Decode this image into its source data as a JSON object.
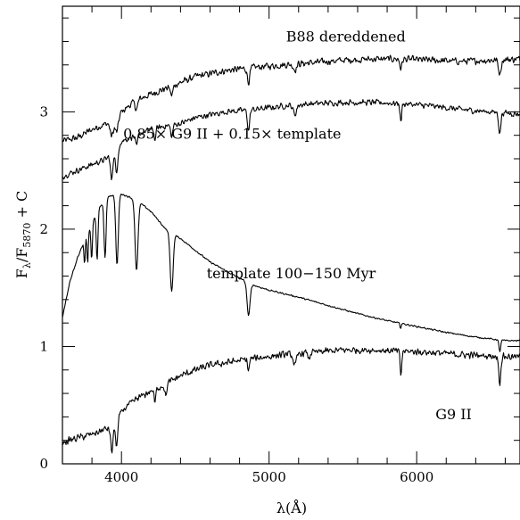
{
  "chart_data": {
    "type": "line",
    "xlabel": "λ(Å)",
    "ylabel_main": "F",
    "ylabel_sub1": "λ",
    "ylabel_mid": "/F",
    "ylabel_sub2": "5870",
    "ylabel_tail": " + C",
    "xlim": [
      3600,
      6700
    ],
    "ylim": [
      0,
      3.9
    ],
    "xticks": [
      4000,
      5000,
      6000
    ],
    "xtick_labels": [
      "4000",
      "5000",
      "6000"
    ],
    "yticks": [
      0,
      1,
      2,
      3
    ],
    "ytick_labels": [
      "0",
      "1",
      "2",
      "3"
    ],
    "grid": false,
    "series": [
      {
        "name": "B88 dereddened",
        "x": [
          3600,
          3700,
          3800,
          3900,
          3950,
          4000,
          4100,
          4200,
          4300,
          4400,
          4500,
          4700,
          4900,
          5100,
          5300,
          5500,
          5700,
          5900,
          6100,
          6300,
          6500,
          6700
        ],
        "y": [
          2.75,
          2.78,
          2.85,
          2.9,
          2.92,
          3.0,
          3.1,
          3.15,
          3.2,
          3.25,
          3.3,
          3.35,
          3.38,
          3.4,
          3.42,
          3.44,
          3.45,
          3.45,
          3.44,
          3.43,
          3.44,
          3.45
        ],
        "noise": 0.035,
        "absorption": [
          [
            3934,
            0.12,
            15
          ],
          [
            3968,
            0.12,
            15
          ],
          [
            4102,
            0.08,
            12
          ],
          [
            4340,
            0.08,
            12
          ],
          [
            4861,
            0.12,
            12
          ],
          [
            5175,
            0.05,
            15
          ],
          [
            5893,
            0.08,
            10
          ],
          [
            6563,
            0.12,
            12
          ]
        ]
      },
      {
        "name": "0.85× G9 II + 0.15× template",
        "x": [
          3600,
          3700,
          3800,
          3900,
          3950,
          4000,
          4100,
          4200,
          4300,
          4400,
          4500,
          4700,
          4900,
          5100,
          5300,
          5500,
          5700,
          5900,
          6100,
          6300,
          6500,
          6700
        ],
        "y": [
          2.45,
          2.5,
          2.55,
          2.6,
          2.7,
          2.75,
          2.8,
          2.85,
          2.88,
          2.9,
          2.95,
          3.0,
          3.02,
          3.05,
          3.07,
          3.08,
          3.08,
          3.07,
          3.05,
          3.02,
          3.0,
          2.98
        ],
        "noise": 0.03,
        "absorption": [
          [
            3934,
            0.25,
            12
          ],
          [
            3968,
            0.25,
            12
          ],
          [
            4102,
            0.1,
            10
          ],
          [
            4227,
            0.1,
            8
          ],
          [
            4340,
            0.1,
            10
          ],
          [
            4861,
            0.18,
            10
          ],
          [
            5175,
            0.08,
            15
          ],
          [
            5893,
            0.15,
            8
          ],
          [
            6563,
            0.18,
            10
          ]
        ]
      },
      {
        "name": "template 100−150 Myr",
        "x": [
          3600,
          3650,
          3700,
          3750,
          3800,
          3850,
          3900,
          4000,
          4100,
          4200,
          4300,
          4400,
          4500,
          4600,
          4700,
          4800,
          4900,
          5000,
          5200,
          5400,
          5600,
          5800,
          6000,
          6200,
          6400,
          6600,
          6700
        ],
        "y": [
          1.25,
          1.55,
          1.75,
          1.9,
          2.05,
          2.18,
          2.28,
          2.3,
          2.25,
          2.15,
          2.0,
          1.92,
          1.82,
          1.72,
          1.65,
          1.58,
          1.52,
          1.48,
          1.42,
          1.35,
          1.28,
          1.22,
          1.17,
          1.12,
          1.08,
          1.05,
          1.05
        ],
        "noise": 0.008,
        "absorption": [
          [
            3750,
            0.2,
            6
          ],
          [
            3771,
            0.25,
            6
          ],
          [
            3798,
            0.3,
            7
          ],
          [
            3835,
            0.4,
            8
          ],
          [
            3889,
            0.5,
            10
          ],
          [
            3970,
            0.6,
            12
          ],
          [
            4102,
            0.6,
            14
          ],
          [
            4340,
            0.5,
            14
          ],
          [
            4861,
            0.28,
            14
          ],
          [
            5890,
            0.04,
            6
          ],
          [
            6563,
            0.1,
            8
          ]
        ]
      },
      {
        "name": "G9 II",
        "x": [
          3600,
          3700,
          3800,
          3900,
          3950,
          4000,
          4100,
          4200,
          4300,
          4400,
          4500,
          4600,
          4700,
          4900,
          5100,
          5300,
          5500,
          5700,
          5900,
          6100,
          6300,
          6500,
          6700
        ],
        "y": [
          0.18,
          0.22,
          0.25,
          0.3,
          0.3,
          0.45,
          0.55,
          0.62,
          0.68,
          0.75,
          0.8,
          0.84,
          0.86,
          0.9,
          0.93,
          0.95,
          0.97,
          0.97,
          0.96,
          0.95,
          0.93,
          0.92,
          0.91
        ],
        "noise": 0.035,
        "absorption": [
          [
            3934,
            0.2,
            10
          ],
          [
            3968,
            0.2,
            10
          ],
          [
            4227,
            0.12,
            8
          ],
          [
            4300,
            0.1,
            10
          ],
          [
            4861,
            0.1,
            8
          ],
          [
            5175,
            0.1,
            15
          ],
          [
            5270,
            0.06,
            8
          ],
          [
            5893,
            0.2,
            8
          ],
          [
            6563,
            0.22,
            10
          ]
        ]
      }
    ],
    "annotations": [
      {
        "text": "B88 dereddened",
        "x": 5520,
        "y": 3.6
      },
      {
        "text": "0.85× G9 II + 0.15× template",
        "x": 4750,
        "y": 2.77
      },
      {
        "text": "template 100−150 Myr",
        "x": 5150,
        "y": 1.58
      },
      {
        "text": "G9 II",
        "x": 6250,
        "y": 0.38
      }
    ]
  }
}
